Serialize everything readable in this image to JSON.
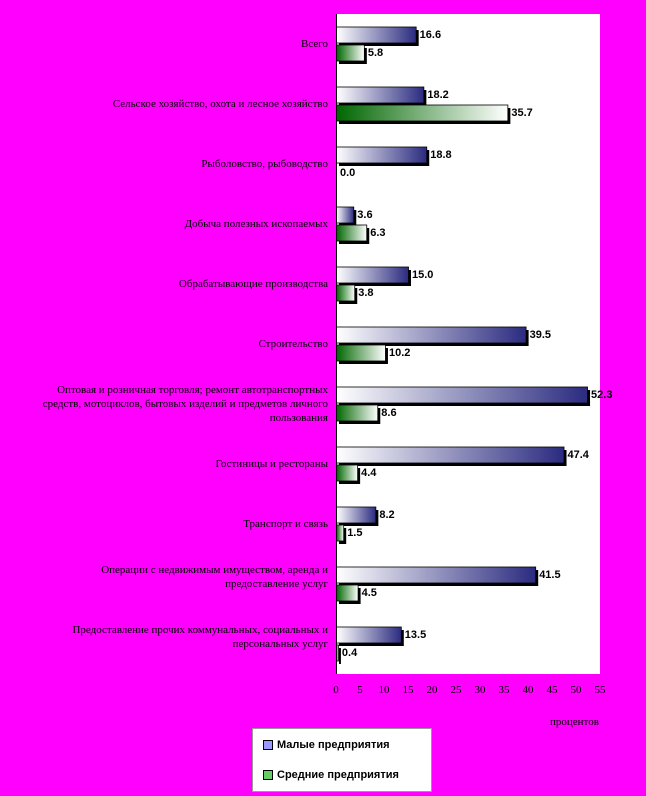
{
  "chart_data": {
    "type": "bar",
    "orientation": "horizontal",
    "categories": [
      "Всего",
      "Сельское хозяйство, охота и лесное хозяйство",
      "Рыболовство, рыбоводство",
      "Добыча полезных ископаемых",
      "Обрабатывающие производства",
      "Строительство",
      "Оптовая и розничная торговля; ремонт автотранспортных средств, мотоциклов, бытовых изделий и предметов личного пользования",
      "Гостиницы и рестораны",
      "Транспорт и связь",
      "Операции с недвижимым имуществом, аренда и предоставление услуг",
      "Предоставление прочих коммунальных, социальных и персональных услуг"
    ],
    "series": [
      {
        "name": "Малые предприятия",
        "values": [
          16.6,
          18.2,
          18.8,
          3.6,
          15.0,
          39.5,
          52.3,
          47.4,
          8.2,
          41.5,
          13.5
        ],
        "labels": [
          "16.6",
          "18.2",
          "18.8",
          "3.6",
          "15.0",
          "39.5",
          "52.3",
          "47.4",
          "8.2",
          "41.5",
          "13.5"
        ]
      },
      {
        "name": "Средние предприятия",
        "values": [
          5.8,
          35.7,
          0.0,
          6.3,
          3.8,
          10.2,
          8.6,
          4.4,
          1.5,
          4.5,
          0.4
        ],
        "labels": [
          "5.8",
          "35.7",
          "0.0",
          "6.3",
          "3.8",
          "10.2",
          "8.6",
          "4.4",
          "1.5",
          "4.5",
          "0.4"
        ]
      }
    ],
    "xlim": [
      0,
      55
    ],
    "xticks": [
      "0",
      "5",
      "10",
      "15",
      "20",
      "25",
      "30",
      "35",
      "40",
      "45",
      "50",
      "55"
    ],
    "xlabel": "процентов",
    "legend_position": "bottom",
    "colors": {
      "small": "#9999FF",
      "medium": "#66CC66"
    }
  }
}
